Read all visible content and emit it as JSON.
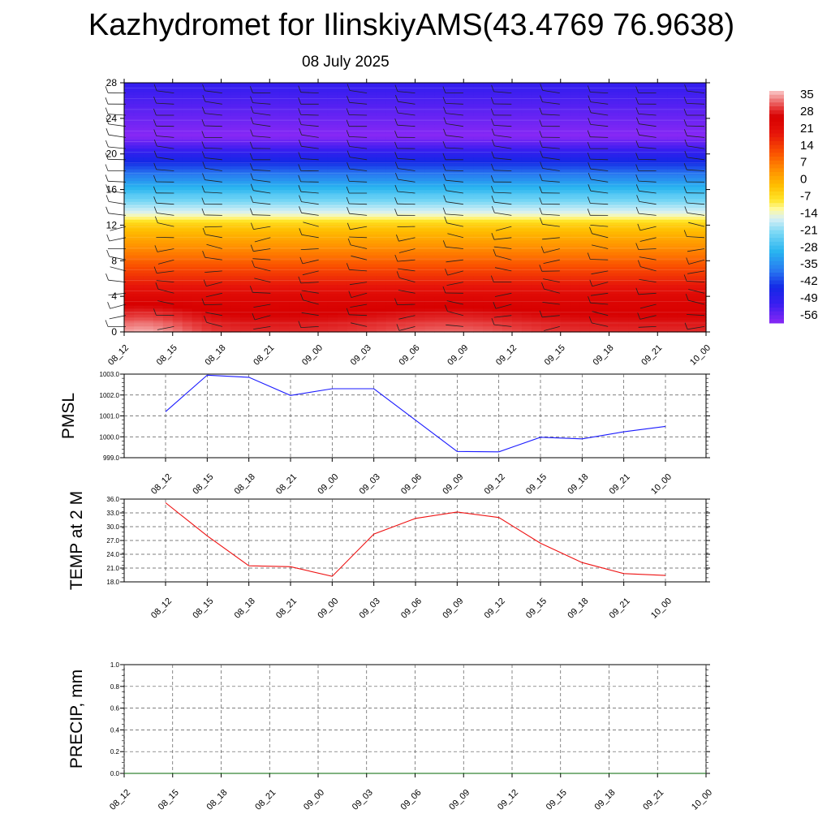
{
  "title": "Kazhydromet for IlinskiyAMS(43.4769 76.9638)",
  "subtitle": "08 July 2025",
  "colors": {
    "pmsl_line": "#1a1aff",
    "temp_line": "#ee1111",
    "precip_line": "#006400",
    "grid": "#555555"
  },
  "chart_data": [
    {
      "type": "heatmap",
      "id": "upper-air-temperature",
      "x": [
        "08_12",
        "08_15",
        "08_18",
        "08_21",
        "09_00",
        "09_03",
        "09_06",
        "09_09",
        "09_12",
        "09_15",
        "09_18",
        "09_21",
        "10_00"
      ],
      "y_ticks": [
        0,
        4,
        8,
        12,
        16,
        20,
        24,
        28
      ],
      "ylim": [
        0,
        28
      ],
      "colorbar": {
        "labels": [
          "35",
          "28",
          "21",
          "14",
          "7",
          "0",
          "-7",
          "-14",
          "-21",
          "-28",
          "-35",
          "-42",
          "-49",
          "-56"
        ],
        "range": [
          -60,
          38
        ]
      },
      "grid": false,
      "wind_barbs": true,
      "legend_position": "right"
    },
    {
      "type": "line",
      "id": "pmsl",
      "ylabel": "PMSL",
      "x": [
        "08_12",
        "08_15",
        "08_18",
        "08_21",
        "09_00",
        "09_03",
        "09_06",
        "09_09",
        "09_12",
        "09_15",
        "09_18",
        "09_21",
        "10_00"
      ],
      "y_ticks": [
        "999.0",
        "1000.0",
        "1001.0",
        "1002.0",
        "1003.0"
      ],
      "ylim": [
        999,
        1003
      ],
      "series": [
        {
          "values": [
            1001.2,
            1002.95,
            1002.85,
            1001.98,
            1002.3,
            1002.3,
            1000.8,
            999.3,
            999.28,
            999.98,
            999.9,
            1000.24,
            1000.5
          ]
        }
      ],
      "grid": true
    },
    {
      "type": "line",
      "id": "temp-2m",
      "ylabel": "TEMP at 2 M",
      "x": [
        "08_12",
        "08_15",
        "08_18",
        "08_21",
        "09_00",
        "09_03",
        "09_06",
        "09_09",
        "09_12",
        "09_15",
        "09_18",
        "09_21",
        "10_00"
      ],
      "y_ticks": [
        "18.0",
        "21.0",
        "24.0",
        "27.0",
        "30.0",
        "33.0",
        "36.0"
      ],
      "ylim": [
        18,
        36
      ],
      "series": [
        {
          "values": [
            35.2,
            28.0,
            21.5,
            21.3,
            19.2,
            28.4,
            31.8,
            33.2,
            32.0,
            26.4,
            22.2,
            19.8,
            19.4
          ]
        }
      ],
      "grid": true
    },
    {
      "type": "line",
      "id": "precip",
      "ylabel": "PRECIP, mm",
      "x": [
        "08_12",
        "08_15",
        "08_18",
        "08_21",
        "09_00",
        "09_03",
        "09_06",
        "09_09",
        "09_12",
        "09_15",
        "09_18",
        "09_21",
        "10_00"
      ],
      "y_ticks": [
        "0.0",
        "0.2",
        "0.4",
        "0.6",
        "0.8",
        "1.0"
      ],
      "ylim": [
        0,
        1
      ],
      "series": [
        {
          "values": [
            0,
            0,
            0,
            0,
            0,
            0,
            0,
            0,
            0,
            0,
            0,
            0,
            0
          ]
        }
      ],
      "grid": true
    }
  ]
}
